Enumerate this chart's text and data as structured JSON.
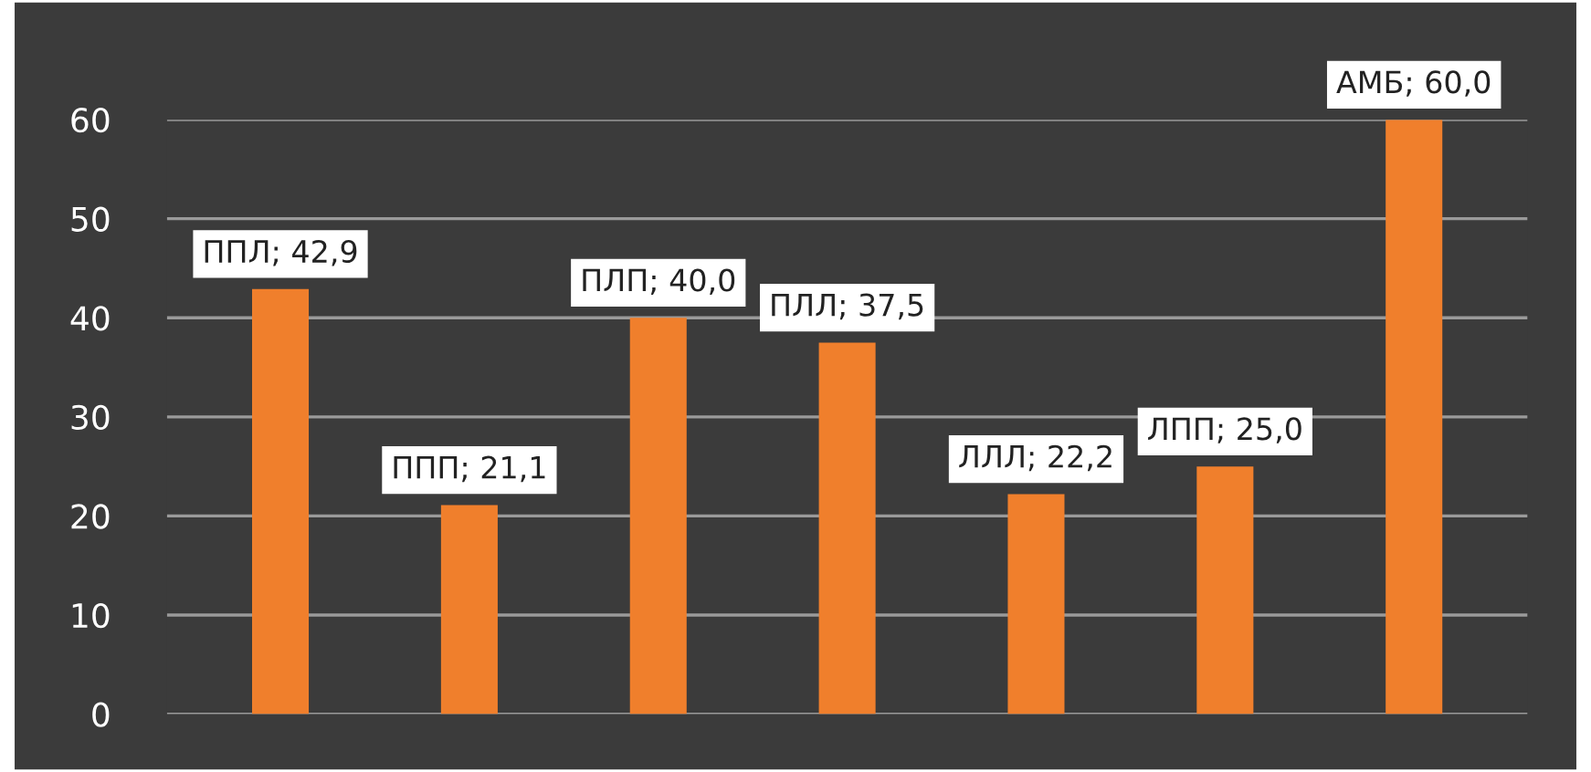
{
  "chart_data": {
    "type": "bar",
    "categories": [
      null,
      null,
      null,
      null,
      null,
      null,
      null
    ],
    "values": [
      42.9,
      21.1,
      40.0,
      37.5,
      22.2,
      25.0,
      60.0
    ],
    "value_labels": [
      "ППЛ; 42,9",
      "ППП; 21,1",
      "ПЛП; 40,0",
      "ПЛЛ; 37,5",
      "ЛЛЛ; 22,2",
      "ЛПП; 25,0",
      "АМБ; 60,0"
    ],
    "color": "#f07f2c",
    "ylim": [
      0,
      60
    ],
    "yticks": [
      0,
      10,
      20,
      30,
      40,
      50,
      60
    ],
    "grid": "y",
    "legend": false
  }
}
